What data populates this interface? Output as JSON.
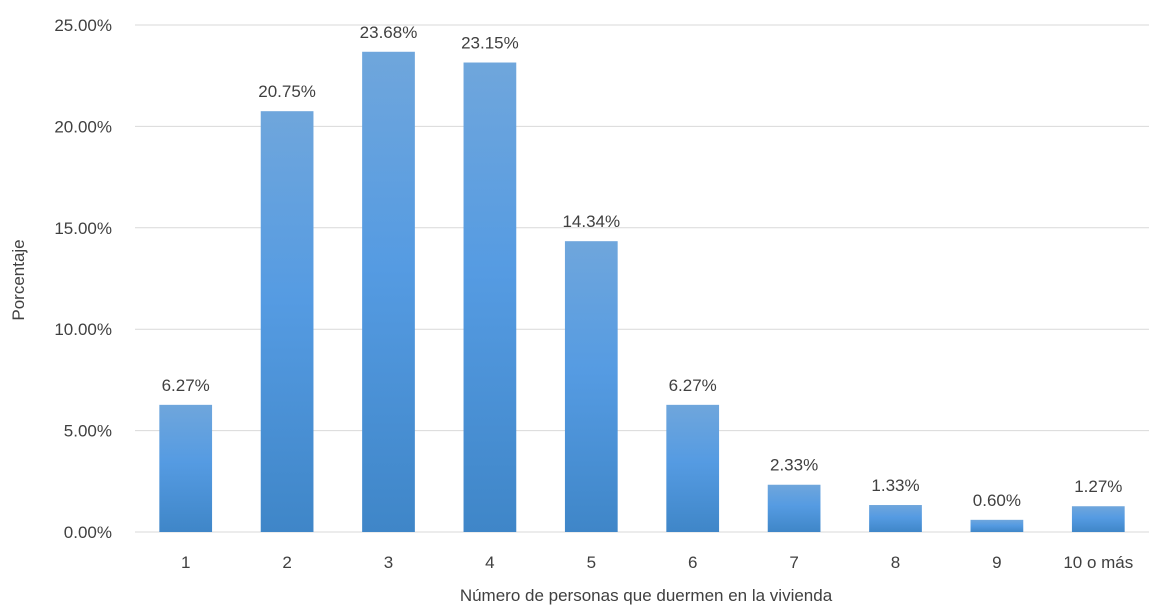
{
  "chart_data": {
    "type": "bar",
    "title": "",
    "xlabel": "Número de personas que duermen en la vivienda",
    "ylabel": "Porcentaje",
    "categories": [
      "1",
      "2",
      "3",
      "4",
      "5",
      "6",
      "7",
      "8",
      "9",
      "10 o más"
    ],
    "values": [
      6.27,
      20.75,
      23.68,
      23.15,
      14.34,
      6.27,
      2.33,
      1.33,
      0.6,
      1.27
    ],
    "value_labels": [
      "6.27%",
      "20.75%",
      "23.68%",
      "23.15%",
      "14.34%",
      "6.27%",
      "2.33%",
      "1.33%",
      "0.60%",
      "1.27%"
    ],
    "ylim": [
      0,
      25
    ],
    "yticks": [
      0,
      5,
      10,
      15,
      20,
      25
    ],
    "ytick_labels": [
      "0.00%",
      "5.00%",
      "10.00%",
      "15.00%",
      "20.00%",
      "25.00%"
    ],
    "grid": true,
    "legend": "none",
    "colors": {
      "bar_top": "#6fa6dc",
      "bar_mid": "#559be2",
      "bar_bottom": "#3f86c8",
      "gridline": "#d9d9d9",
      "text": "#404040"
    }
  }
}
